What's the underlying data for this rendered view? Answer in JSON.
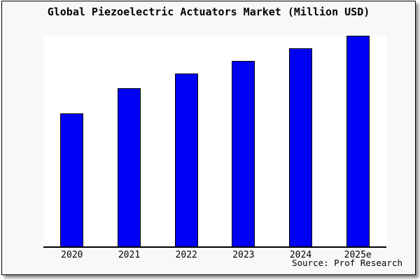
{
  "title": "Global Piezoelectric Actuators Market (Million USD)",
  "source_note": "Source: Prof Research",
  "colors": {
    "bar_fill": "#0000f5",
    "bar_border": "#000000",
    "plot_background": "#ffffff",
    "frame_background": "#f8f8f8",
    "frame_border": "#000000",
    "axis": "#000000"
  },
  "chart_data": {
    "type": "bar",
    "title": "Global Piezoelectric Actuators Market (Million USD)",
    "categories": [
      "2020",
      "2021",
      "2022",
      "2023",
      "2024",
      "2025e"
    ],
    "values": [
      63,
      75,
      82,
      88,
      94,
      100
    ],
    "xlabel": "",
    "ylabel": "",
    "ylim": [
      0,
      100
    ],
    "grid": false,
    "legend": false,
    "note": "Chart shows no y-axis scale; values are relative bar heights (percent of tallest bar)."
  }
}
